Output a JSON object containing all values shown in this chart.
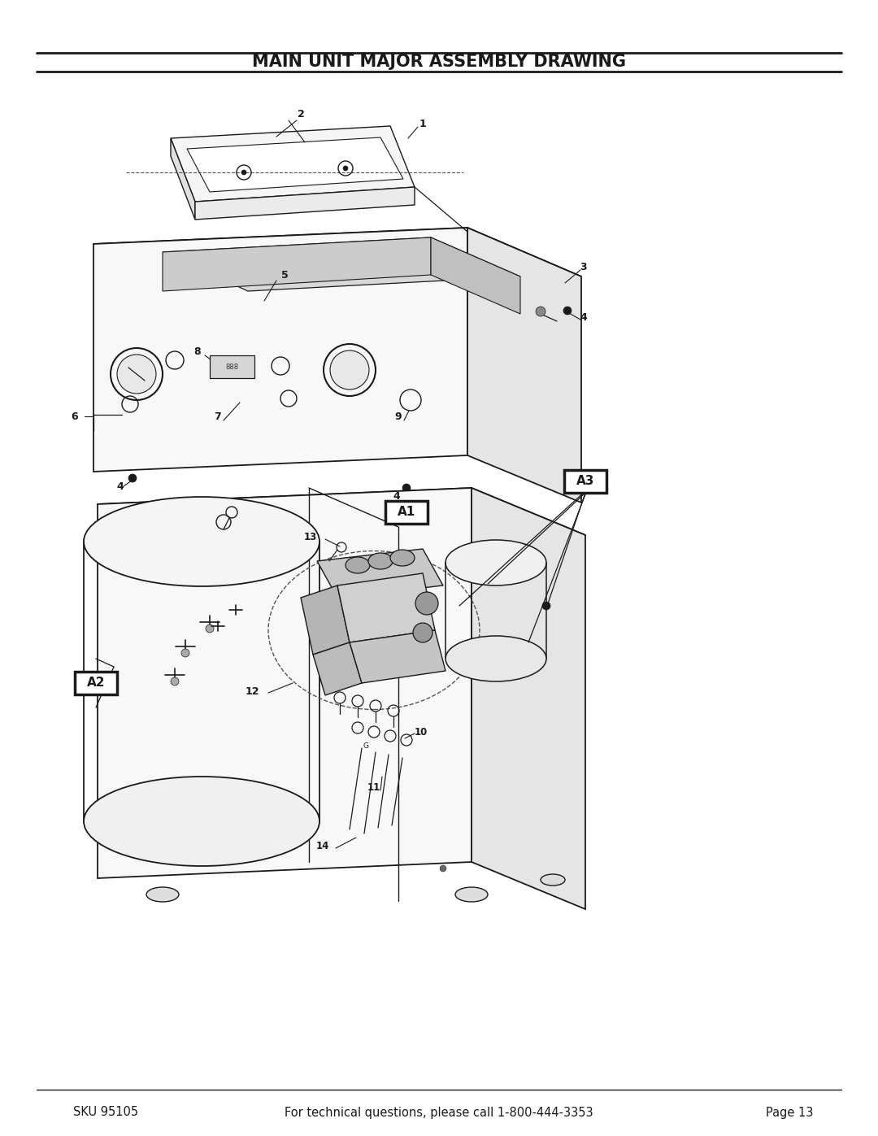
{
  "title": "MAIN UNIT MAJOR ASSEMBLY DRAWING",
  "title_fontsize": 15,
  "title_fontweight": "bold",
  "background_color": "#ffffff",
  "text_color": "#1a1a1a",
  "line_color": "#1a1a1a",
  "footer_left": "SKU 95105",
  "footer_center": "For technical questions, please call 1-800-444-3353",
  "footer_right": "Page 13",
  "footer_fontsize": 10.5,
  "page_width": 10.8,
  "page_height": 13.97,
  "dpi": 100
}
